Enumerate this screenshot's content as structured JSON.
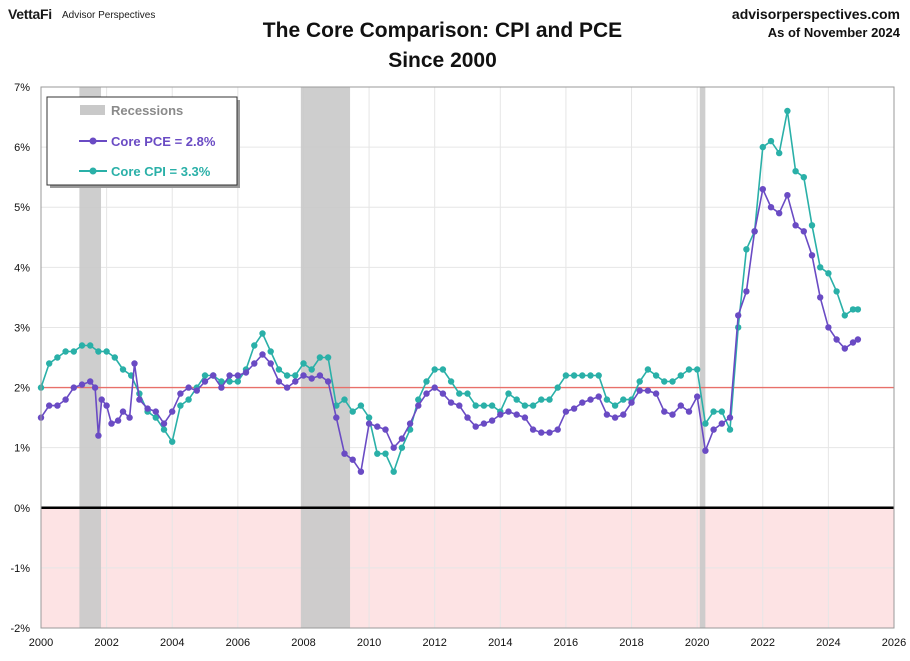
{
  "header": {
    "logo": "VettaFi",
    "logo_sub": "Advisor Perspectives",
    "title_line1": "The Core Comparison: CPI and PCE",
    "title_line2": "Since 2000",
    "site": "advisorperspectives.com",
    "as_of": "As of November 2024"
  },
  "chart_data": {
    "type": "line",
    "title": "The Core Comparison: CPI and PCE Since 2000",
    "xlim": [
      2000,
      2026
    ],
    "ylim": [
      -2,
      7
    ],
    "x_ticks": [
      "2000",
      "2002",
      "2004",
      "2006",
      "2008",
      "2010",
      "2012",
      "2014",
      "2016",
      "2018",
      "2020",
      "2022",
      "2024",
      "2026"
    ],
    "y_ticks": [
      "7%",
      "6%",
      "5%",
      "4%",
      "3%",
      "2%",
      "1%",
      "0%",
      "-1%",
      "-2%"
    ],
    "reference_line": {
      "y": 2,
      "color": "#e8706a"
    },
    "zero_line": {
      "y": 0,
      "color": "#000000"
    },
    "negative_band_color": "#fde3e4",
    "recessions": [
      [
        2001.17,
        2001.83
      ],
      [
        2007.92,
        2009.42
      ],
      [
        2020.08,
        2020.25
      ]
    ],
    "grid": true,
    "legend_position": "top-left",
    "legend": [
      {
        "label": "Recessions",
        "color": "#c9c9c9"
      },
      {
        "label": "Core PCE = 2.8%",
        "color": "#6a4bc4"
      },
      {
        "label": "Core CPI =  3.3%",
        "color": "#2ab0a8"
      }
    ],
    "series": [
      {
        "name": "Core PCE = 2.8%",
        "color": "#6a4bc4",
        "points": [
          [
            2000.0,
            1.5
          ],
          [
            2000.25,
            1.7
          ],
          [
            2000.5,
            1.7
          ],
          [
            2000.75,
            1.8
          ],
          [
            2001.0,
            2.0
          ],
          [
            2001.25,
            2.05
          ],
          [
            2001.5,
            2.1
          ],
          [
            2001.65,
            2.0
          ],
          [
            2001.75,
            1.2
          ],
          [
            2001.85,
            1.8
          ],
          [
            2002.0,
            1.7
          ],
          [
            2002.15,
            1.4
          ],
          [
            2002.35,
            1.45
          ],
          [
            2002.5,
            1.6
          ],
          [
            2002.7,
            1.5
          ],
          [
            2002.85,
            2.4
          ],
          [
            2003.0,
            1.8
          ],
          [
            2003.25,
            1.65
          ],
          [
            2003.5,
            1.6
          ],
          [
            2003.75,
            1.4
          ],
          [
            2004.0,
            1.6
          ],
          [
            2004.25,
            1.9
          ],
          [
            2004.5,
            2.0
          ],
          [
            2004.75,
            1.95
          ],
          [
            2005.0,
            2.1
          ],
          [
            2005.25,
            2.2
          ],
          [
            2005.5,
            2.0
          ],
          [
            2005.75,
            2.2
          ],
          [
            2006.0,
            2.2
          ],
          [
            2006.25,
            2.25
          ],
          [
            2006.5,
            2.4
          ],
          [
            2006.75,
            2.55
          ],
          [
            2007.0,
            2.4
          ],
          [
            2007.25,
            2.1
          ],
          [
            2007.5,
            2.0
          ],
          [
            2007.75,
            2.1
          ],
          [
            2008.0,
            2.2
          ],
          [
            2008.25,
            2.15
          ],
          [
            2008.5,
            2.2
          ],
          [
            2008.75,
            2.1
          ],
          [
            2009.0,
            1.5
          ],
          [
            2009.25,
            0.9
          ],
          [
            2009.5,
            0.8
          ],
          [
            2009.75,
            0.6
          ],
          [
            2010.0,
            1.4
          ],
          [
            2010.25,
            1.35
          ],
          [
            2010.5,
            1.3
          ],
          [
            2010.75,
            1.0
          ],
          [
            2011.0,
            1.15
          ],
          [
            2011.25,
            1.4
          ],
          [
            2011.5,
            1.7
          ],
          [
            2011.75,
            1.9
          ],
          [
            2012.0,
            2.0
          ],
          [
            2012.25,
            1.9
          ],
          [
            2012.5,
            1.75
          ],
          [
            2012.75,
            1.7
          ],
          [
            2013.0,
            1.5
          ],
          [
            2013.25,
            1.35
          ],
          [
            2013.5,
            1.4
          ],
          [
            2013.75,
            1.45
          ],
          [
            2014.0,
            1.55
          ],
          [
            2014.25,
            1.6
          ],
          [
            2014.5,
            1.55
          ],
          [
            2014.75,
            1.5
          ],
          [
            2015.0,
            1.3
          ],
          [
            2015.25,
            1.25
          ],
          [
            2015.5,
            1.25
          ],
          [
            2015.75,
            1.3
          ],
          [
            2016.0,
            1.6
          ],
          [
            2016.25,
            1.65
          ],
          [
            2016.5,
            1.75
          ],
          [
            2016.75,
            1.8
          ],
          [
            2017.0,
            1.85
          ],
          [
            2017.25,
            1.55
          ],
          [
            2017.5,
            1.5
          ],
          [
            2017.75,
            1.55
          ],
          [
            2018.0,
            1.75
          ],
          [
            2018.25,
            1.95
          ],
          [
            2018.5,
            1.95
          ],
          [
            2018.75,
            1.9
          ],
          [
            2019.0,
            1.6
          ],
          [
            2019.25,
            1.55
          ],
          [
            2019.5,
            1.7
          ],
          [
            2019.75,
            1.6
          ],
          [
            2020.0,
            1.85
          ],
          [
            2020.25,
            0.95
          ],
          [
            2020.5,
            1.3
          ],
          [
            2020.75,
            1.4
          ],
          [
            2021.0,
            1.5
          ],
          [
            2021.25,
            3.2
          ],
          [
            2021.5,
            3.6
          ],
          [
            2021.75,
            4.6
          ],
          [
            2022.0,
            5.3
          ],
          [
            2022.25,
            5.0
          ],
          [
            2022.5,
            4.9
          ],
          [
            2022.75,
            5.2
          ],
          [
            2023.0,
            4.7
          ],
          [
            2023.25,
            4.6
          ],
          [
            2023.5,
            4.2
          ],
          [
            2023.75,
            3.5
          ],
          [
            2024.0,
            3.0
          ],
          [
            2024.25,
            2.8
          ],
          [
            2024.5,
            2.65
          ],
          [
            2024.75,
            2.75
          ],
          [
            2024.9,
            2.8
          ]
        ]
      },
      {
        "name": "Core CPI =  3.3%",
        "color": "#2ab0a8",
        "points": [
          [
            2000.0,
            2.0
          ],
          [
            2000.25,
            2.4
          ],
          [
            2000.5,
            2.5
          ],
          [
            2000.75,
            2.6
          ],
          [
            2001.0,
            2.6
          ],
          [
            2001.25,
            2.7
          ],
          [
            2001.5,
            2.7
          ],
          [
            2001.75,
            2.6
          ],
          [
            2002.0,
            2.6
          ],
          [
            2002.25,
            2.5
          ],
          [
            2002.5,
            2.3
          ],
          [
            2002.75,
            2.2
          ],
          [
            2003.0,
            1.9
          ],
          [
            2003.25,
            1.6
          ],
          [
            2003.5,
            1.5
          ],
          [
            2003.75,
            1.3
          ],
          [
            2004.0,
            1.1
          ],
          [
            2004.25,
            1.7
          ],
          [
            2004.5,
            1.8
          ],
          [
            2004.75,
            2.0
          ],
          [
            2005.0,
            2.2
          ],
          [
            2005.25,
            2.2
          ],
          [
            2005.5,
            2.1
          ],
          [
            2005.75,
            2.1
          ],
          [
            2006.0,
            2.1
          ],
          [
            2006.25,
            2.3
          ],
          [
            2006.5,
            2.7
          ],
          [
            2006.75,
            2.9
          ],
          [
            2007.0,
            2.6
          ],
          [
            2007.25,
            2.3
          ],
          [
            2007.5,
            2.2
          ],
          [
            2007.75,
            2.2
          ],
          [
            2008.0,
            2.4
          ],
          [
            2008.25,
            2.3
          ],
          [
            2008.5,
            2.5
          ],
          [
            2008.75,
            2.5
          ],
          [
            2009.0,
            1.7
          ],
          [
            2009.25,
            1.8
          ],
          [
            2009.5,
            1.6
          ],
          [
            2009.75,
            1.7
          ],
          [
            2010.0,
            1.5
          ],
          [
            2010.25,
            0.9
          ],
          [
            2010.5,
            0.9
          ],
          [
            2010.75,
            0.6
          ],
          [
            2011.0,
            1.0
          ],
          [
            2011.25,
            1.3
          ],
          [
            2011.5,
            1.8
          ],
          [
            2011.75,
            2.1
          ],
          [
            2012.0,
            2.3
          ],
          [
            2012.25,
            2.3
          ],
          [
            2012.5,
            2.1
          ],
          [
            2012.75,
            1.9
          ],
          [
            2013.0,
            1.9
          ],
          [
            2013.25,
            1.7
          ],
          [
            2013.5,
            1.7
          ],
          [
            2013.75,
            1.7
          ],
          [
            2014.0,
            1.6
          ],
          [
            2014.25,
            1.9
          ],
          [
            2014.5,
            1.8
          ],
          [
            2014.75,
            1.7
          ],
          [
            2015.0,
            1.7
          ],
          [
            2015.25,
            1.8
          ],
          [
            2015.5,
            1.8
          ],
          [
            2015.75,
            2.0
          ],
          [
            2016.0,
            2.2
          ],
          [
            2016.25,
            2.2
          ],
          [
            2016.5,
            2.2
          ],
          [
            2016.75,
            2.2
          ],
          [
            2017.0,
            2.2
          ],
          [
            2017.25,
            1.8
          ],
          [
            2017.5,
            1.7
          ],
          [
            2017.75,
            1.8
          ],
          [
            2018.0,
            1.8
          ],
          [
            2018.25,
            2.1
          ],
          [
            2018.5,
            2.3
          ],
          [
            2018.75,
            2.2
          ],
          [
            2019.0,
            2.1
          ],
          [
            2019.25,
            2.1
          ],
          [
            2019.5,
            2.2
          ],
          [
            2019.75,
            2.3
          ],
          [
            2020.0,
            2.3
          ],
          [
            2020.25,
            1.4
          ],
          [
            2020.5,
            1.6
          ],
          [
            2020.75,
            1.6
          ],
          [
            2021.0,
            1.3
          ],
          [
            2021.25,
            3.0
          ],
          [
            2021.5,
            4.3
          ],
          [
            2021.75,
            4.6
          ],
          [
            2022.0,
            6.0
          ],
          [
            2022.25,
            6.1
          ],
          [
            2022.5,
            5.9
          ],
          [
            2022.75,
            6.6
          ],
          [
            2023.0,
            5.6
          ],
          [
            2023.25,
            5.5
          ],
          [
            2023.5,
            4.7
          ],
          [
            2023.75,
            4.0
          ],
          [
            2024.0,
            3.9
          ],
          [
            2024.25,
            3.6
          ],
          [
            2024.5,
            3.2
          ],
          [
            2024.75,
            3.3
          ],
          [
            2024.9,
            3.3
          ]
        ]
      }
    ]
  }
}
